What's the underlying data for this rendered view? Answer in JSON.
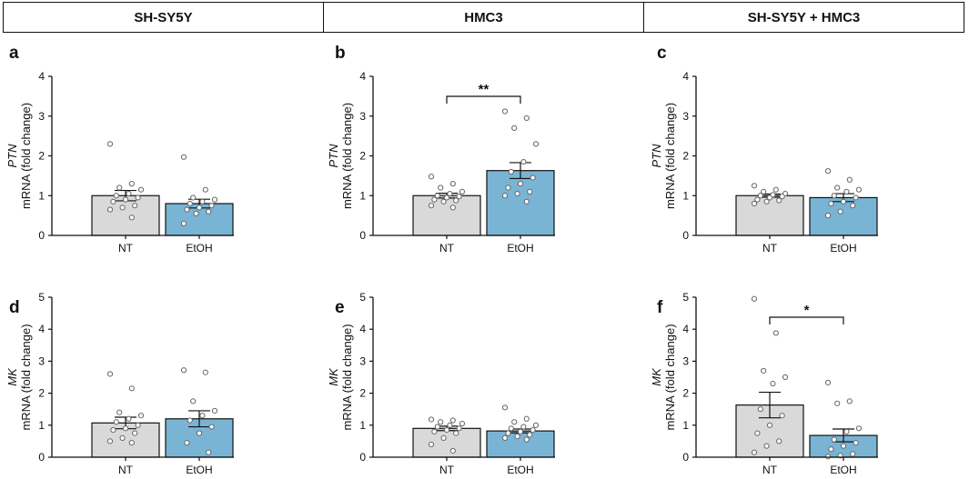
{
  "column_headers": [
    "SH-SY5Y",
    "HMC3",
    "SH-SY5Y + HMC3"
  ],
  "colors": {
    "nt_bar": "#d9d9d9",
    "etoh_bar": "#7ab4d4",
    "axis": "#111111"
  },
  "chart_data": [
    {
      "panel": "a",
      "type": "bar",
      "gene": "PTN",
      "ylabel_unit": "mRNA (fold change)",
      "categories": [
        "NT",
        "EtOH"
      ],
      "values": [
        1.0,
        0.8
      ],
      "sem": [
        0.13,
        0.11
      ],
      "ylim": [
        0,
        4
      ],
      "yticks": [
        "0",
        "1",
        "2",
        "3",
        "4"
      ],
      "points": [
        [
          2.3,
          1.3,
          1.2,
          1.15,
          1.05,
          1.0,
          0.95,
          0.9,
          0.85,
          0.75,
          0.7,
          0.65,
          0.45
        ],
        [
          1.97,
          1.15,
          0.95,
          0.9,
          0.85,
          0.8,
          0.75,
          0.7,
          0.65,
          0.6,
          0.55,
          0.3
        ]
      ],
      "significance": null
    },
    {
      "panel": "b",
      "type": "bar",
      "gene": "PTN",
      "ylabel_unit": "mRNA (fold change)",
      "categories": [
        "NT",
        "EtOH"
      ],
      "values": [
        1.0,
        1.63
      ],
      "sem": [
        0.06,
        0.2
      ],
      "ylim": [
        0,
        4
      ],
      "yticks": [
        "0",
        "1",
        "2",
        "3",
        "4"
      ],
      "points": [
        [
          1.48,
          1.3,
          1.2,
          1.1,
          1.05,
          1.0,
          0.98,
          0.95,
          0.9,
          0.88,
          0.85,
          0.75,
          0.7
        ],
        [
          3.12,
          2.95,
          2.7,
          2.3,
          1.85,
          1.6,
          1.45,
          1.3,
          1.2,
          1.1,
          1.05,
          1.0,
          0.85
        ]
      ],
      "significance": {
        "label": "**"
      }
    },
    {
      "panel": "c",
      "type": "bar",
      "gene": "PTN",
      "ylabel_unit": "mRNA (fold change)",
      "categories": [
        "NT",
        "EtOH"
      ],
      "values": [
        1.0,
        0.95
      ],
      "sem": [
        0.04,
        0.1
      ],
      "ylim": [
        0,
        4
      ],
      "yticks": [
        "0",
        "1",
        "2",
        "3",
        "4"
      ],
      "points": [
        [
          1.25,
          1.15,
          1.1,
          1.05,
          1.02,
          1.0,
          0.98,
          0.95,
          0.9,
          0.88,
          0.85,
          0.8
        ],
        [
          1.62,
          1.4,
          1.2,
          1.15,
          1.1,
          1.0,
          0.95,
          0.85,
          0.8,
          0.75,
          0.6,
          0.5
        ]
      ],
      "significance": null
    },
    {
      "panel": "d",
      "type": "bar",
      "gene": "MK",
      "ylabel_unit": "mRNA (fold change)",
      "categories": [
        "NT",
        "EtOH"
      ],
      "values": [
        1.07,
        1.2
      ],
      "sem": [
        0.18,
        0.25
      ],
      "ylim": [
        0,
        5
      ],
      "yticks": [
        "0",
        "1",
        "2",
        "3",
        "4",
        "5"
      ],
      "points": [
        [
          2.6,
          2.15,
          1.4,
          1.3,
          1.2,
          1.1,
          1.0,
          0.9,
          0.85,
          0.75,
          0.6,
          0.5,
          0.45
        ],
        [
          2.72,
          2.65,
          1.75,
          1.45,
          1.3,
          1.15,
          0.95,
          0.75,
          0.45,
          0.15
        ]
      ],
      "significance": null
    },
    {
      "panel": "e",
      "type": "bar",
      "gene": "MK",
      "ylabel_unit": "mRNA (fold change)",
      "categories": [
        "NT",
        "EtOH"
      ],
      "values": [
        0.9,
        0.82
      ],
      "sem": [
        0.07,
        0.06
      ],
      "ylim": [
        0,
        5
      ],
      "yticks": [
        "0",
        "1",
        "2",
        "3",
        "4",
        "5"
      ],
      "points": [
        [
          1.18,
          1.15,
          1.1,
          1.05,
          1.0,
          0.95,
          0.9,
          0.85,
          0.8,
          0.75,
          0.6,
          0.4,
          0.2
        ],
        [
          1.55,
          1.2,
          1.1,
          1.0,
          0.95,
          0.9,
          0.85,
          0.8,
          0.75,
          0.7,
          0.65,
          0.6,
          0.55
        ]
      ],
      "significance": null
    },
    {
      "panel": "f",
      "type": "bar",
      "gene": "MK",
      "ylabel_unit": "mRNA (fold change)",
      "categories": [
        "NT",
        "EtOH"
      ],
      "values": [
        1.63,
        0.68
      ],
      "sem": [
        0.4,
        0.2
      ],
      "ylim": [
        0,
        5
      ],
      "yticks": [
        "0",
        "1",
        "2",
        "3",
        "4",
        "5"
      ],
      "points": [
        [
          4.95,
          3.88,
          2.7,
          2.5,
          2.3,
          1.5,
          1.3,
          1.0,
          0.75,
          0.5,
          0.35,
          0.15
        ],
        [
          2.33,
          1.75,
          1.68,
          0.9,
          0.8,
          0.55,
          0.45,
          0.35,
          0.25,
          0.1,
          0.05,
          0.02
        ]
      ],
      "significance": {
        "label": "*"
      }
    }
  ]
}
